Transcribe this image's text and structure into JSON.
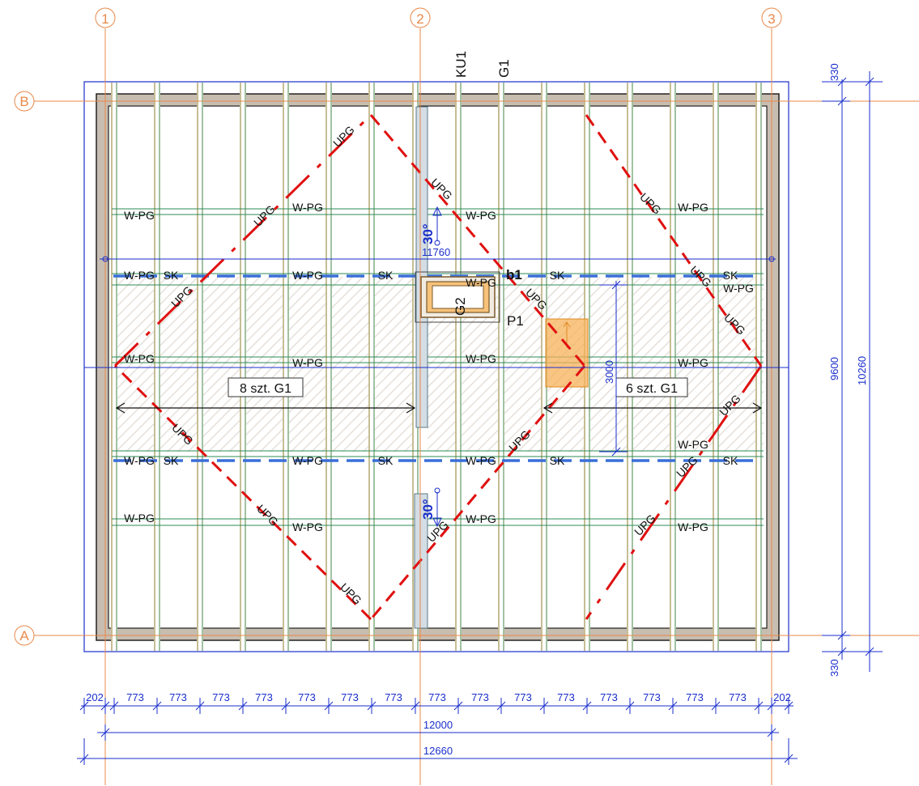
{
  "grid": {
    "vertical": [
      "1",
      "2",
      "3"
    ],
    "horizontal": [
      "B",
      "A"
    ]
  },
  "top_labels": {
    "ku1": "KU1",
    "g1": "G1"
  },
  "element_labels": {
    "b1": "b1",
    "p1": "P1",
    "g2": "G2"
  },
  "callouts": {
    "left": "8 szt. G1",
    "right": "6 szt. G1"
  },
  "slope": {
    "upper": "30°",
    "lower": "30°",
    "span": "11760"
  },
  "dimensions": {
    "bottom_spacing": [
      "202",
      "773",
      "773",
      "773",
      "773",
      "773",
      "773",
      "773",
      "773",
      "773",
      "773",
      "773",
      "773",
      "773",
      "773",
      "773",
      "202"
    ],
    "total_inner": "12000",
    "total_outer": "12660",
    "right_top": "330",
    "right_bottom": "330",
    "right_inner": "9600",
    "right_outer": "10260",
    "opening_height": "3000"
  },
  "tags": {
    "upg": "UPG",
    "wpg": "W-PG",
    "sk": "SK"
  },
  "colors": {
    "grid": "#e8894a",
    "dimension": "#1a2ecc",
    "valley": "#e01010",
    "rafter": "#b9a96a",
    "purlin": "#2e8b57",
    "sk_line": "#3a6fd8",
    "wall": "#b5a99b",
    "highlight": "#f5a040"
  }
}
